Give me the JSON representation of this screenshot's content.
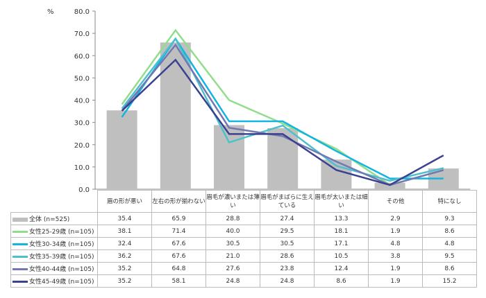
{
  "chart_data": {
    "type": "bar+line",
    "ylabel": "%",
    "ylim": [
      0,
      80
    ],
    "yticks": [
      "0.0",
      "10.0",
      "20.0",
      "30.0",
      "40.0",
      "50.0",
      "60.0",
      "70.0",
      "80.0"
    ],
    "categories": [
      "眉の形が悪い",
      "左右の形が揃わない",
      "眉毛が濃いまたは薄い",
      "眉毛がまばらに生えている",
      "眉毛が太いまたは細い",
      "その他",
      "特になし"
    ],
    "series": [
      {
        "name": "全体 (n=525)",
        "kind": "bar",
        "color": "#bfbfbf",
        "values": [
          35.4,
          65.9,
          28.8,
          27.4,
          13.3,
          2.9,
          9.3
        ]
      },
      {
        "name": "女性25-29歳 (n=105)",
        "kind": "line",
        "color": "#92dd8c",
        "values": [
          38.1,
          71.4,
          40.0,
          29.5,
          18.1,
          1.9,
          8.6
        ]
      },
      {
        "name": "女性30-34歳 (n=105)",
        "kind": "line",
        "color": "#12b4e0",
        "values": [
          32.4,
          67.6,
          30.5,
          30.5,
          17.1,
          4.8,
          4.8
        ]
      },
      {
        "name": "女性35-39歳 (n=105)",
        "kind": "line",
        "color": "#4cc0cc",
        "values": [
          36.2,
          67.6,
          21.0,
          28.6,
          10.5,
          3.8,
          9.5
        ]
      },
      {
        "name": "女性40-44歳 (n=105)",
        "kind": "line",
        "color": "#7278b4",
        "values": [
          35.2,
          64.8,
          27.6,
          23.8,
          12.4,
          1.9,
          8.6
        ]
      },
      {
        "name": "女性45-49歳 (n=105)",
        "kind": "line",
        "color": "#3a4290",
        "values": [
          35.2,
          58.1,
          24.8,
          24.8,
          8.6,
          1.9,
          15.2
        ]
      }
    ]
  }
}
